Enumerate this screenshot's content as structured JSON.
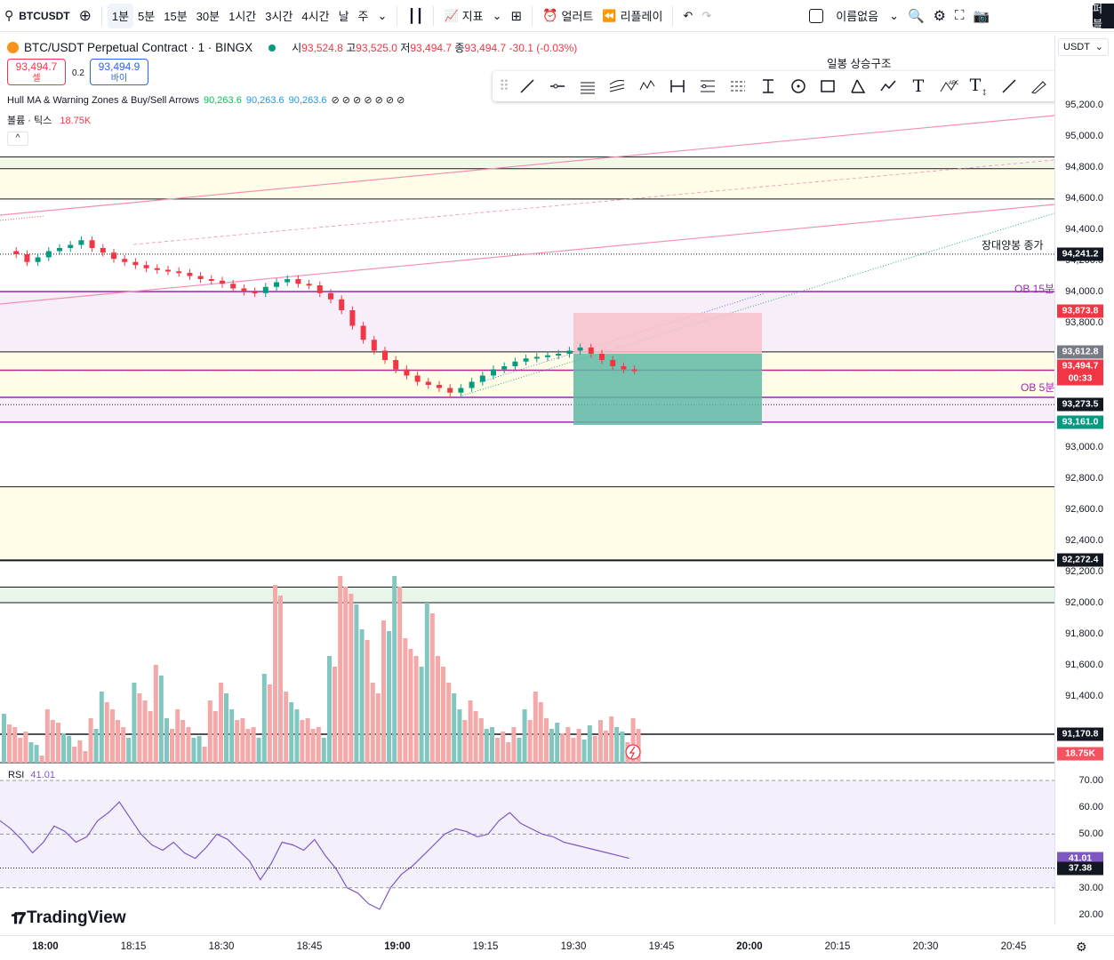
{
  "toolbar": {
    "symbol": "BTCUSDT",
    "intervals": [
      "1분",
      "5분",
      "15분",
      "30분",
      "1시간",
      "3시간",
      "4시간",
      "날",
      "주"
    ],
    "active_interval": "1분",
    "indicators_label": "지표",
    "alerts_label": "얼러트",
    "replay_label": "리플레이",
    "layout_name": "이름없음",
    "publish_label": "퍼블"
  },
  "legend": {
    "title": "BTC/USDT Perpetual Contract · 1 · BINGX",
    "open_label": "시",
    "open": "93,524.8",
    "high_label": "고",
    "high": "93,525.0",
    "low_label": "저",
    "low": "93,494.7",
    "close_label": "종",
    "close": "93,494.7",
    "change": "-30.1 (-0.03%)",
    "sell_price": "93,494.7",
    "sell_label": "셀",
    "buy_price": "93,494.9",
    "buy_label": "바이",
    "spread": "0.2",
    "hull_name": "Hull MA & Warning Zones & Buy/Sell Arrows",
    "hull_v1": "90,263.6",
    "hull_v2": "90,263.6",
    "hull_v3": "90,263.6",
    "hull_dots": "⊘ ⊘ ⊘ ⊘ ⊘ ⊘ ⊘",
    "vol_label": "볼륨 · 틱스",
    "vol_value": "18.75K",
    "collapse_icon": "^"
  },
  "annotations": {
    "ichimoku": "일봉 상승구조",
    "big_bull_close": "장대양봉 종가",
    "ob15": "OB 15분",
    "ob5": "OB 5분"
  },
  "price_axis": {
    "currency": "USDT",
    "ticks": [
      "95,200.0",
      "95,000.0",
      "94,800.0",
      "94,600.0",
      "94,400.0",
      "94,200.0",
      "94,000.0",
      "93,800.0",
      "93,000.0",
      "92,800.0",
      "92,600.0",
      "92,400.0",
      "92,200.0",
      "92,000.0",
      "91,800.0",
      "91,600.0",
      "91,400.0"
    ],
    "labels": [
      {
        "text": "94,241.2",
        "color": "#131722"
      },
      {
        "text": "93,873.8",
        "color": "#f23645"
      },
      {
        "text": "93,612.8",
        "color": "#787b86"
      },
      {
        "text": "93,494.7",
        "color": "#f23645"
      },
      {
        "text": "00:33",
        "color": "#f23645"
      },
      {
        "text": "93,273.5",
        "color": "#131722"
      },
      {
        "text": "93,161.0",
        "color": "#089981"
      },
      {
        "text": "92,272.4",
        "color": "#131722"
      },
      {
        "text": "91,170.8",
        "color": "#131722"
      },
      {
        "text": "18.75K",
        "color": "#f7525f"
      }
    ]
  },
  "rsi": {
    "label": "RSI",
    "value": "41.01",
    "ticks": [
      "70.00",
      "60.00",
      "50.00",
      "30.00",
      "20.00"
    ],
    "label_current": "41.01",
    "label_ma": "37.38"
  },
  "time_axis": {
    "ticks": [
      "18:00",
      "18:15",
      "18:30",
      "18:45",
      "19:00",
      "19:15",
      "19:30",
      "19:45",
      "20:00",
      "20:15",
      "20:30",
      "20:45"
    ]
  },
  "branding": "TradingView",
  "colors": {
    "up": "#089981",
    "down": "#f23645",
    "rsi": "#7e57c2",
    "vol_up": "#81c7c0",
    "vol_down": "#f4a8a8"
  }
}
